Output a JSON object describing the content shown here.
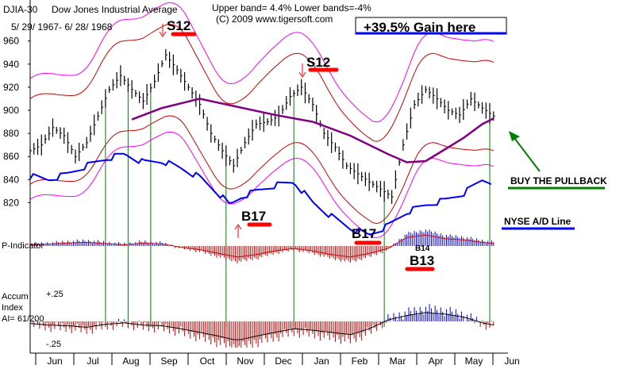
{
  "header": {
    "ticker": "DJIA-30",
    "name": "Dow Jones Industrial Average",
    "date_range": "5/ 29/ 1967- 6/ 28/ 1968",
    "bands": "Upper band= 4.4%  Lower bands=-4%",
    "copyright": "(C) 2009 www.tigersoft.com",
    "gain_box": "+39.5% Gain here"
  },
  "colors": {
    "price_bars": "#000000",
    "ad_line": "#0000ff",
    "ma": "#800080",
    "bands_outer": "#ff00ff",
    "bands_inner": "#cc0000",
    "signal_lines": "#008000",
    "highlight": "#ff0000",
    "pos_hist": "#0000ff",
    "neg_hist": "#cc0000"
  },
  "chart_data": {
    "type": "line",
    "title": "Dow Jones Industrial Average",
    "x_ticks": [
      "Jun",
      "Jul",
      "Aug",
      "Sep",
      "Oct",
      "Nov",
      "Dec",
      "Jan",
      "Feb",
      "Mar",
      "Apr",
      "May",
      "Jun"
    ],
    "price_axis": {
      "ticks": [
        960,
        940,
        920,
        900,
        880,
        860,
        840,
        820
      ],
      "ylim": [
        810,
        968
      ]
    },
    "price_series": {
      "name": "DJIA",
      "x": [
        0,
        0.3,
        0.6,
        0.9,
        1.2,
        1.5,
        1.8,
        2.1,
        2.4,
        2.7,
        3.0,
        3.3,
        3.6,
        3.9,
        4.2,
        4.5,
        4.8,
        5.1,
        5.4,
        5.7,
        6.0,
        6.3,
        6.6,
        6.9,
        7.2,
        7.5,
        7.8,
        8.1,
        8.4,
        8.7,
        9.0,
        9.3,
        9.6,
        9.9,
        10.2,
        10.5,
        10.8,
        11.1,
        11.4,
        11.7,
        12.0,
        12.3
      ],
      "y": [
        865,
        870,
        885,
        878,
        860,
        872,
        895,
        918,
        930,
        918,
        908,
        925,
        948,
        935,
        920,
        905,
        880,
        865,
        852,
        872,
        888,
        890,
        895,
        912,
        920,
        905,
        880,
        868,
        852,
        845,
        838,
        832,
        825,
        870,
        905,
        918,
        910,
        900,
        896,
        910,
        902,
        895
      ]
    },
    "moving_average": {
      "x": [
        2.7,
        3.5,
        4.5,
        5.5,
        6.5,
        7.5,
        8.5,
        9.5,
        10.0,
        10.5,
        11.0,
        11.5,
        12.0,
        12.3
      ],
      "y": [
        892,
        902,
        910,
        903,
        896,
        890,
        878,
        862,
        855,
        856,
        866,
        876,
        888,
        893
      ]
    },
    "ad_line": {
      "name": "NYSE A/D Line",
      "x": [
        0,
        0.5,
        1.0,
        1.5,
        2.0,
        2.5,
        3.0,
        3.5,
        4.0,
        4.5,
        5.0,
        5.3,
        5.6,
        6.0,
        6.5,
        7.0,
        7.5,
        8.0,
        8.5,
        9.0,
        9.5,
        10.0,
        10.5,
        11.0,
        11.5,
        12.0,
        12.3
      ],
      "y": [
        843,
        840,
        845,
        852,
        858,
        862,
        855,
        856,
        850,
        842,
        828,
        818,
        825,
        830,
        835,
        838,
        820,
        808,
        798,
        792,
        800,
        812,
        818,
        822,
        828,
        840,
        838
      ]
    },
    "annotations": [
      {
        "text": "S12",
        "x": 3.4,
        "y": 962
      },
      {
        "text": "S12",
        "x": 7.3,
        "y": 942
      },
      {
        "text": "B17",
        "x": 5.5,
        "y": 818
      },
      {
        "text": "B17",
        "x": 8.6,
        "y": 807
      },
      {
        "text": "B13",
        "x": 9.8,
        "y": 800
      },
      {
        "text": "B14",
        "x": 10.0,
        "y": 804
      },
      {
        "text": "BUY THE PULLBACK",
        "x": 12.3,
        "y": 841
      },
      {
        "text": "NYSE A/D Line",
        "x": 12.3,
        "y": 826
      }
    ],
    "signals_x": [
      2.0,
      2.6,
      3.2,
      5.2,
      7.0,
      9.4,
      12.2
    ],
    "p_indicator": {
      "label": "P-Indicator",
      "x": [
        0,
        0.5,
        1.0,
        1.5,
        2.0,
        2.5,
        3.0,
        3.5,
        4.0,
        4.5,
        5.0,
        5.5,
        6.0,
        6.5,
        7.0,
        7.5,
        8.0,
        8.5,
        9.0,
        9.5,
        10.0,
        10.5,
        11.0,
        11.5,
        12.0,
        12.3
      ],
      "y": [
        0.05,
        0.08,
        0.12,
        0.15,
        0.1,
        0.05,
        0.12,
        0.08,
        -0.05,
        -0.15,
        -0.3,
        -0.45,
        -0.35,
        -0.2,
        -0.1,
        -0.2,
        -0.35,
        -0.45,
        -0.3,
        -0.1,
        0.35,
        0.45,
        0.3,
        0.25,
        0.15,
        0.1
      ]
    },
    "accum_index": {
      "label1": "Accum",
      "label2": "Index",
      "ai_text": "AI= 61/200",
      "ticks": [
        "+.25",
        "-.25"
      ],
      "x": [
        0,
        0.5,
        1.0,
        1.5,
        2.0,
        2.5,
        3.0,
        3.5,
        4.0,
        4.5,
        5.0,
        5.5,
        6.0,
        6.5,
        7.0,
        7.5,
        8.0,
        8.5,
        9.0,
        9.5,
        10.0,
        10.5,
        11.0,
        11.5,
        12.0,
        12.3
      ],
      "y": [
        -0.03,
        -0.05,
        -0.06,
        -0.08,
        -0.04,
        -0.02,
        -0.05,
        -0.06,
        -0.1,
        -0.15,
        -0.2,
        -0.26,
        -0.2,
        -0.15,
        -0.1,
        -0.12,
        -0.15,
        -0.18,
        -0.1,
        0.02,
        0.08,
        0.12,
        0.1,
        0.06,
        -0.02,
        -0.05
      ]
    }
  }
}
